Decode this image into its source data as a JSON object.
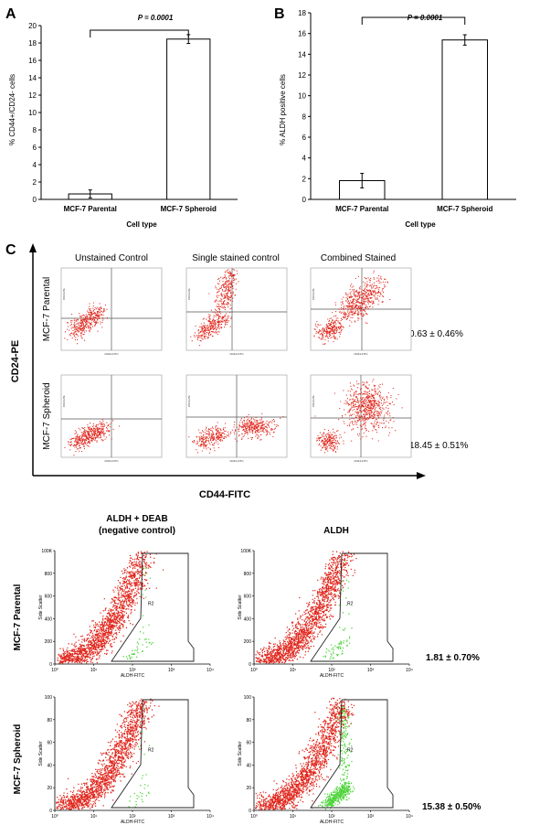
{
  "panels": {
    "A": {
      "letter": "A",
      "ylabel": "% CD44+/CD24- cells",
      "xlabel": "Cell type",
      "p_value": "P = 0.0001",
      "ticks": [
        "0",
        "2",
        "4",
        "6",
        "8",
        "10",
        "12",
        "14",
        "16",
        "18",
        "20"
      ]
    },
    "B": {
      "letter": "B",
      "ylabel": "% ALDH  positive cells",
      "xlabel": "Cell type",
      "p_value": "P = 0.0001",
      "ticks": [
        "0",
        "2",
        "4",
        "6",
        "8",
        "10",
        "12",
        "14",
        "16",
        "18"
      ]
    },
    "C": {
      "letter": "C",
      "yaxis_label": "CD24-PE",
      "xaxis_label": "CD44-FITC",
      "col_titles": [
        "Unstained Control",
        "Single stained control",
        "Combined Stained"
      ],
      "row_labels": [
        "MCF-7 Parental",
        "MCF-7  Spheroid"
      ],
      "percentages": [
        "0.63 ± 0.46%",
        "18.45 ± 0.51%"
      ],
      "mini_ylabel": "CD24-PE",
      "mini_xlabel": "CD44-FITC"
    },
    "D": {
      "col_title_1_line1": "ALDH + DEAB",
      "col_title_1_line2": "(negative control)",
      "col_title_2": "ALDH",
      "row_labels": [
        "MCF-7 Parental",
        "MCF-7 Spheroid"
      ],
      "percentages": [
        "1.81 ± 0.70%",
        "15.38 ± 0.50%"
      ],
      "ylabel": "Side Scatter",
      "xlabel": "ALDH-FITC",
      "gate_label": "R2",
      "yticks": [
        "0",
        "200",
        "400",
        "600",
        "800",
        "100K"
      ],
      "yticks_lower": [
        "0",
        "20",
        "40",
        "60",
        "80",
        "100"
      ],
      "xticks": [
        "10⁰",
        "10¹",
        "10²",
        "10³",
        "10⁴"
      ]
    }
  },
  "chart_data": [
    {
      "type": "bar",
      "title": "",
      "xlabel": "Cell type",
      "ylabel": "% CD44+/CD24- cells",
      "categories": [
        "MCF-7 Parental",
        "MCF-7 Spheroid"
      ],
      "values": [
        0.63,
        18.45
      ],
      "errors": [
        0.46,
        0.51
      ],
      "ylim": [
        0,
        20
      ],
      "annotation": "P = 0.0001",
      "colors": {
        "bar_fill": "#ffffff",
        "bar_stroke": "#000000"
      }
    },
    {
      "type": "bar",
      "title": "",
      "xlabel": "Cell type",
      "ylabel": "% ALDH  positive cells",
      "categories": [
        "MCF-7 Parental",
        "MCF-7 Spheroid"
      ],
      "values": [
        1.81,
        15.38
      ],
      "errors": [
        0.7,
        0.5
      ],
      "ylim": [
        0,
        18
      ],
      "annotation": "P = 0.0001",
      "colors": {
        "bar_fill": "#ffffff",
        "bar_stroke": "#000000"
      }
    }
  ],
  "colors": {
    "dots": "#e0281e",
    "gate_dots": "#4fd43c",
    "axis": "#000000"
  }
}
